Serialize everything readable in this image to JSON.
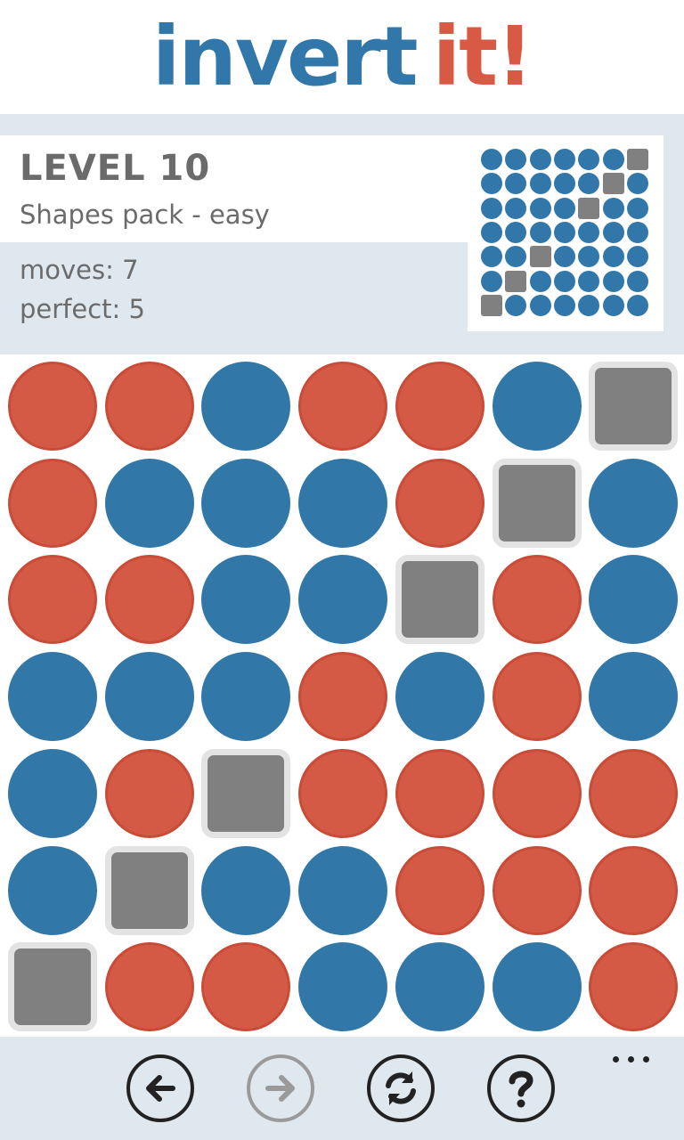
{
  "app": {
    "title_part1": "invert",
    "title_part2": "it!"
  },
  "level": {
    "title": "LEVEL 10",
    "pack": "Shapes pack - easy",
    "moves": "moves: 7",
    "perfect": "perfect: 5"
  },
  "board": {
    "rows": 7,
    "cols": 7,
    "cells": [
      [
        "red",
        "red",
        "blue",
        "red",
        "red",
        "blue",
        "gray"
      ],
      [
        "red",
        "blue",
        "blue",
        "blue",
        "red",
        "gray",
        "blue"
      ],
      [
        "red",
        "red",
        "blue",
        "blue",
        "gray",
        "red",
        "blue"
      ],
      [
        "blue",
        "blue",
        "blue",
        "red",
        "blue",
        "red",
        "blue"
      ],
      [
        "blue",
        "red",
        "gray",
        "red",
        "red",
        "red",
        "red"
      ],
      [
        "blue",
        "gray",
        "blue",
        "blue",
        "red",
        "red",
        "red"
      ],
      [
        "gray",
        "red",
        "red",
        "blue",
        "blue",
        "blue",
        "red"
      ]
    ]
  },
  "target_preview": {
    "cells": [
      [
        "blue",
        "blue",
        "blue",
        "blue",
        "blue",
        "blue",
        "gray"
      ],
      [
        "blue",
        "blue",
        "blue",
        "blue",
        "blue",
        "gray",
        "blue"
      ],
      [
        "blue",
        "blue",
        "blue",
        "blue",
        "gray",
        "blue",
        "blue"
      ],
      [
        "blue",
        "blue",
        "blue",
        "blue",
        "blue",
        "blue",
        "blue"
      ],
      [
        "blue",
        "blue",
        "gray",
        "blue",
        "blue",
        "blue",
        "blue"
      ],
      [
        "blue",
        "gray",
        "blue",
        "blue",
        "blue",
        "blue",
        "blue"
      ],
      [
        "gray",
        "blue",
        "blue",
        "blue",
        "blue",
        "blue",
        "blue"
      ]
    ]
  },
  "toolbar": {
    "buttons": [
      {
        "icon": "back-arrow-icon",
        "enabled": true
      },
      {
        "icon": "forward-arrow-icon",
        "enabled": false
      },
      {
        "icon": "restart-icon",
        "enabled": true
      },
      {
        "icon": "help-icon",
        "enabled": true
      }
    ],
    "more_icon": "more-dots-icon"
  },
  "colors": {
    "blue": "#3277aa",
    "red": "#d85a45",
    "gray": "#808080",
    "panel": "#dfe8ef"
  }
}
